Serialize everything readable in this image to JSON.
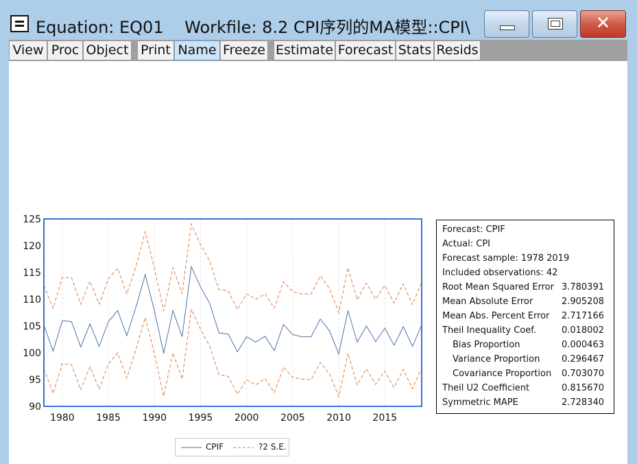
{
  "window": {
    "title": "Equation: EQ01    Workfile: 8.2 CPI序列的MA模型::CPI\\",
    "close_glyph": "✕"
  },
  "toolbar": {
    "buttons": [
      "View",
      "Proc",
      "Object",
      "Print",
      "Name",
      "Freeze",
      "Estimate",
      "Forecast",
      "Stats",
      "Resids"
    ],
    "active": "Name"
  },
  "colors": {
    "cpif": "#4a72a8",
    "se": "#e07b39",
    "frame": "#3c6fd6"
  },
  "chart_data": {
    "type": "line",
    "x": [
      1978,
      1979,
      1980,
      1981,
      1982,
      1983,
      1984,
      1985,
      1986,
      1987,
      1988,
      1989,
      1990,
      1991,
      1992,
      1993,
      1994,
      1995,
      1996,
      1997,
      1998,
      1999,
      2000,
      2001,
      2002,
      2003,
      2004,
      2005,
      2006,
      2007,
      2008,
      2009,
      2010,
      2011,
      2012,
      2013,
      2014,
      2015,
      2016,
      2017,
      2018,
      2019
    ],
    "series": [
      {
        "name": "CPIF",
        "style": "solid",
        "values": [
          105.2,
          100.3,
          106.0,
          105.8,
          101.1,
          105.4,
          101.2,
          105.8,
          107.9,
          103.2,
          108.6,
          114.6,
          107.8,
          99.9,
          107.9,
          103.0,
          116.1,
          112.3,
          109.2,
          103.7,
          103.5,
          100.2,
          103.0,
          102.0,
          103.1,
          100.4,
          105.3,
          103.4,
          103.0,
          103.0,
          106.3,
          104.1,
          99.8,
          107.9,
          102.0,
          105.0,
          102.1,
          104.6,
          101.4,
          104.9,
          101.2,
          105.2
        ]
      },
      {
        "name": "?2 S.E.",
        "style": "dashed",
        "values": [
          112.6,
          108.3,
          114.1,
          114.0,
          109.1,
          113.4,
          109.1,
          113.8,
          115.8,
          111.0,
          116.2,
          122.6,
          115.8,
          107.8,
          115.9,
          111.0,
          124.1,
          120.2,
          117.1,
          111.8,
          111.6,
          108.1,
          111.0,
          110.0,
          111.0,
          108.3,
          113.3,
          111.4,
          111.0,
          111.0,
          114.4,
          112.0,
          107.5,
          115.9,
          109.9,
          113.0,
          110.0,
          112.6,
          109.3,
          112.9,
          109.0,
          113.2
        ]
      },
      {
        "name": "?2 S.E.",
        "style": "dashed",
        "values": [
          97.0,
          92.4,
          98.0,
          97.8,
          93.1,
          97.4,
          93.2,
          97.9,
          100.0,
          95.3,
          100.7,
          106.6,
          99.8,
          91.9,
          100.0,
          95.1,
          108.1,
          104.4,
          101.2,
          95.9,
          95.6,
          92.3,
          95.0,
          94.0,
          95.2,
          92.6,
          97.3,
          95.4,
          95.1,
          95.0,
          98.2,
          96.0,
          91.8,
          99.9,
          94.0,
          97.0,
          94.1,
          96.6,
          93.5,
          96.9,
          93.3,
          97.2
        ]
      }
    ],
    "ylim": [
      90,
      125
    ],
    "yticks": [
      "90",
      "95",
      "100",
      "105",
      "110",
      "115",
      "120",
      "125"
    ],
    "xticks": [
      "1980",
      "1985",
      "1990",
      "1995",
      "2000",
      "2005",
      "2010",
      "2015"
    ],
    "xtick_values": [
      1980,
      1985,
      1990,
      1995,
      2000,
      2005,
      2010,
      2015
    ],
    "grid": "vertical dashed",
    "legend": "bottom-center",
    "legend_labels": {
      "cpif": "CPIF",
      "se": "?2 S.E."
    }
  },
  "stats": [
    {
      "label": "Forecast: CPIF",
      "value": ""
    },
    {
      "label": "Actual: CPI",
      "value": ""
    },
    {
      "label": "Forecast sample: 1978 2019",
      "value": ""
    },
    {
      "label": "Included observations: 42",
      "value": ""
    },
    {
      "label": "Root Mean Squared Error",
      "value": "3.780391"
    },
    {
      "label": "Mean Absolute Error",
      "value": "2.905208"
    },
    {
      "label": "Mean Abs. Percent Error",
      "value": "2.717166"
    },
    {
      "label": "Theil Inequality Coef.",
      "value": "0.018002"
    },
    {
      "label": "Bias Proportion",
      "value": "0.000463",
      "indent": true
    },
    {
      "label": "Variance Proportion",
      "value": "0.296467",
      "indent": true
    },
    {
      "label": "Covariance Proportion",
      "value": "0.703070",
      "indent": true
    },
    {
      "label": "Theil U2 Coefficient",
      "value": "0.815670"
    },
    {
      "label": "Symmetric MAPE",
      "value": "2.728340"
    }
  ]
}
